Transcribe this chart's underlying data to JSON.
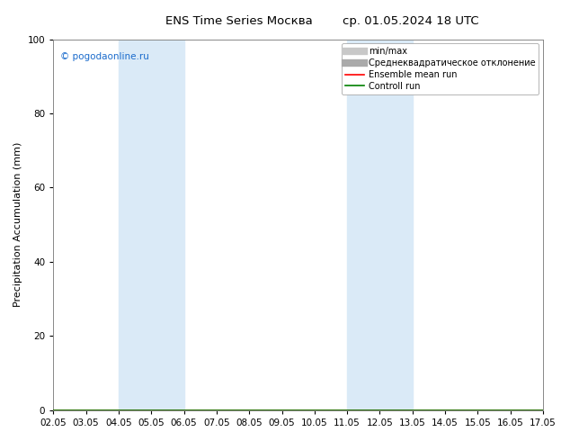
{
  "title": "ENS Time Series Москва",
  "title_right": "ср. 01.05.2024 18 UTC",
  "ylabel": "Precipitation Accumulation (mm)",
  "ylim": [
    0,
    100
  ],
  "xlim": [
    0,
    15
  ],
  "xtick_labels": [
    "02.05",
    "03.05",
    "04.05",
    "05.05",
    "06.05",
    "07.05",
    "08.05",
    "09.05",
    "10.05",
    "11.05",
    "12.05",
    "13.05",
    "14.05",
    "15.05",
    "16.05",
    "17.05"
  ],
  "xtick_positions": [
    0,
    1,
    2,
    3,
    4,
    5,
    6,
    7,
    8,
    9,
    10,
    11,
    12,
    13,
    14,
    15
  ],
  "shade_bands": [
    {
      "xmin": 2,
      "xmax": 4,
      "color": "#daeaf7"
    },
    {
      "xmin": 9,
      "xmax": 11,
      "color": "#daeaf7"
    }
  ],
  "watermark": "© pogodaonline.ru",
  "legend_items": [
    {
      "label": "min/max",
      "color": "#c8c8c8",
      "lw": 6
    },
    {
      "label": "Среднеквадратическое отклонение",
      "color": "#aaaaaa",
      "lw": 6
    },
    {
      "label": "Ensemble mean run",
      "color": "red",
      "lw": 1.2
    },
    {
      "label": "Controll run",
      "color": "green",
      "lw": 1.2
    }
  ],
  "bg_color": "#ffffff",
  "plot_bg_color": "#ffffff",
  "title_fontsize": 9.5,
  "axis_fontsize": 8,
  "tick_fontsize": 7.5,
  "legend_fontsize": 7,
  "watermark_color": "#1a6bcc"
}
